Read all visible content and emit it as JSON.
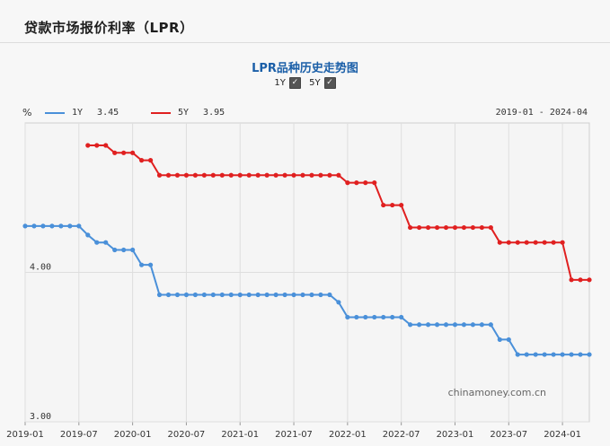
{
  "header": {
    "title": "贷款市场报价利率（LPR）"
  },
  "chart_title": "LPR品种历史走势图",
  "toggles": [
    {
      "label": "1Y",
      "checked": true
    },
    {
      "label": "5Y",
      "checked": true
    }
  ],
  "unit_label": "%",
  "legend": [
    {
      "name": "1Y",
      "value": "3.45",
      "color": "#4a90d9"
    },
    {
      "name": "5Y",
      "value": "3.95",
      "color": "#e02020"
    }
  ],
  "date_range": "2019-01 - 2024-04",
  "watermark": "chinamoney.com.cn",
  "chart_data": {
    "type": "line",
    "ylim": [
      3.0,
      5.0
    ],
    "yticks": [
      {
        "value": 4.0,
        "label": "4.00"
      },
      {
        "value": 3.0,
        "label": "3.00"
      }
    ],
    "xticks": [
      "2019-01",
      "2019-07",
      "2020-01",
      "2020-07",
      "2021-01",
      "2021-07",
      "2022-01",
      "2022-07",
      "2023-01",
      "2023-07",
      "2024-01"
    ],
    "grid": true,
    "series": [
      {
        "name": "1Y",
        "color": "#4a90d9",
        "points": [
          [
            "2019-01",
            4.31
          ],
          [
            "2019-02",
            4.31
          ],
          [
            "2019-03",
            4.31
          ],
          [
            "2019-04",
            4.31
          ],
          [
            "2019-05",
            4.31
          ],
          [
            "2019-06",
            4.31
          ],
          [
            "2019-07",
            4.31
          ],
          [
            "2019-08",
            4.25
          ],
          [
            "2019-09",
            4.2
          ],
          [
            "2019-10",
            4.2
          ],
          [
            "2019-11",
            4.15
          ],
          [
            "2019-12",
            4.15
          ],
          [
            "2020-01",
            4.15
          ],
          [
            "2020-02",
            4.05
          ],
          [
            "2020-03",
            4.05
          ],
          [
            "2020-04",
            3.85
          ],
          [
            "2020-05",
            3.85
          ],
          [
            "2020-06",
            3.85
          ],
          [
            "2020-07",
            3.85
          ],
          [
            "2020-08",
            3.85
          ],
          [
            "2020-09",
            3.85
          ],
          [
            "2020-10",
            3.85
          ],
          [
            "2020-11",
            3.85
          ],
          [
            "2020-12",
            3.85
          ],
          [
            "2021-01",
            3.85
          ],
          [
            "2021-02",
            3.85
          ],
          [
            "2021-03",
            3.85
          ],
          [
            "2021-04",
            3.85
          ],
          [
            "2021-05",
            3.85
          ],
          [
            "2021-06",
            3.85
          ],
          [
            "2021-07",
            3.85
          ],
          [
            "2021-08",
            3.85
          ],
          [
            "2021-09",
            3.85
          ],
          [
            "2021-10",
            3.85
          ],
          [
            "2021-11",
            3.85
          ],
          [
            "2021-12",
            3.8
          ],
          [
            "2022-01",
            3.7
          ],
          [
            "2022-02",
            3.7
          ],
          [
            "2022-03",
            3.7
          ],
          [
            "2022-04",
            3.7
          ],
          [
            "2022-05",
            3.7
          ],
          [
            "2022-06",
            3.7
          ],
          [
            "2022-07",
            3.7
          ],
          [
            "2022-08",
            3.65
          ],
          [
            "2022-09",
            3.65
          ],
          [
            "2022-10",
            3.65
          ],
          [
            "2022-11",
            3.65
          ],
          [
            "2022-12",
            3.65
          ],
          [
            "2023-01",
            3.65
          ],
          [
            "2023-02",
            3.65
          ],
          [
            "2023-03",
            3.65
          ],
          [
            "2023-04",
            3.65
          ],
          [
            "2023-05",
            3.65
          ],
          [
            "2023-06",
            3.55
          ],
          [
            "2023-07",
            3.55
          ],
          [
            "2023-08",
            3.45
          ],
          [
            "2023-09",
            3.45
          ],
          [
            "2023-10",
            3.45
          ],
          [
            "2023-11",
            3.45
          ],
          [
            "2023-12",
            3.45
          ],
          [
            "2024-01",
            3.45
          ],
          [
            "2024-02",
            3.45
          ],
          [
            "2024-03",
            3.45
          ],
          [
            "2024-04",
            3.45
          ]
        ]
      },
      {
        "name": "5Y",
        "color": "#e02020",
        "points": [
          [
            "2019-08",
            4.85
          ],
          [
            "2019-09",
            4.85
          ],
          [
            "2019-10",
            4.85
          ],
          [
            "2019-11",
            4.8
          ],
          [
            "2019-12",
            4.8
          ],
          [
            "2020-01",
            4.8
          ],
          [
            "2020-02",
            4.75
          ],
          [
            "2020-03",
            4.75
          ],
          [
            "2020-04",
            4.65
          ],
          [
            "2020-05",
            4.65
          ],
          [
            "2020-06",
            4.65
          ],
          [
            "2020-07",
            4.65
          ],
          [
            "2020-08",
            4.65
          ],
          [
            "2020-09",
            4.65
          ],
          [
            "2020-10",
            4.65
          ],
          [
            "2020-11",
            4.65
          ],
          [
            "2020-12",
            4.65
          ],
          [
            "2021-01",
            4.65
          ],
          [
            "2021-02",
            4.65
          ],
          [
            "2021-03",
            4.65
          ],
          [
            "2021-04",
            4.65
          ],
          [
            "2021-05",
            4.65
          ],
          [
            "2021-06",
            4.65
          ],
          [
            "2021-07",
            4.65
          ],
          [
            "2021-08",
            4.65
          ],
          [
            "2021-09",
            4.65
          ],
          [
            "2021-10",
            4.65
          ],
          [
            "2021-11",
            4.65
          ],
          [
            "2021-12",
            4.65
          ],
          [
            "2022-01",
            4.6
          ],
          [
            "2022-02",
            4.6
          ],
          [
            "2022-03",
            4.6
          ],
          [
            "2022-04",
            4.6
          ],
          [
            "2022-05",
            4.45
          ],
          [
            "2022-06",
            4.45
          ],
          [
            "2022-07",
            4.45
          ],
          [
            "2022-08",
            4.3
          ],
          [
            "2022-09",
            4.3
          ],
          [
            "2022-10",
            4.3
          ],
          [
            "2022-11",
            4.3
          ],
          [
            "2022-12",
            4.3
          ],
          [
            "2023-01",
            4.3
          ],
          [
            "2023-02",
            4.3
          ],
          [
            "2023-03",
            4.3
          ],
          [
            "2023-04",
            4.3
          ],
          [
            "2023-05",
            4.3
          ],
          [
            "2023-06",
            4.2
          ],
          [
            "2023-07",
            4.2
          ],
          [
            "2023-08",
            4.2
          ],
          [
            "2023-09",
            4.2
          ],
          [
            "2023-10",
            4.2
          ],
          [
            "2023-11",
            4.2
          ],
          [
            "2023-12",
            4.2
          ],
          [
            "2024-01",
            4.2
          ],
          [
            "2024-02",
            3.95
          ],
          [
            "2024-03",
            3.95
          ],
          [
            "2024-04",
            3.95
          ]
        ]
      }
    ]
  }
}
